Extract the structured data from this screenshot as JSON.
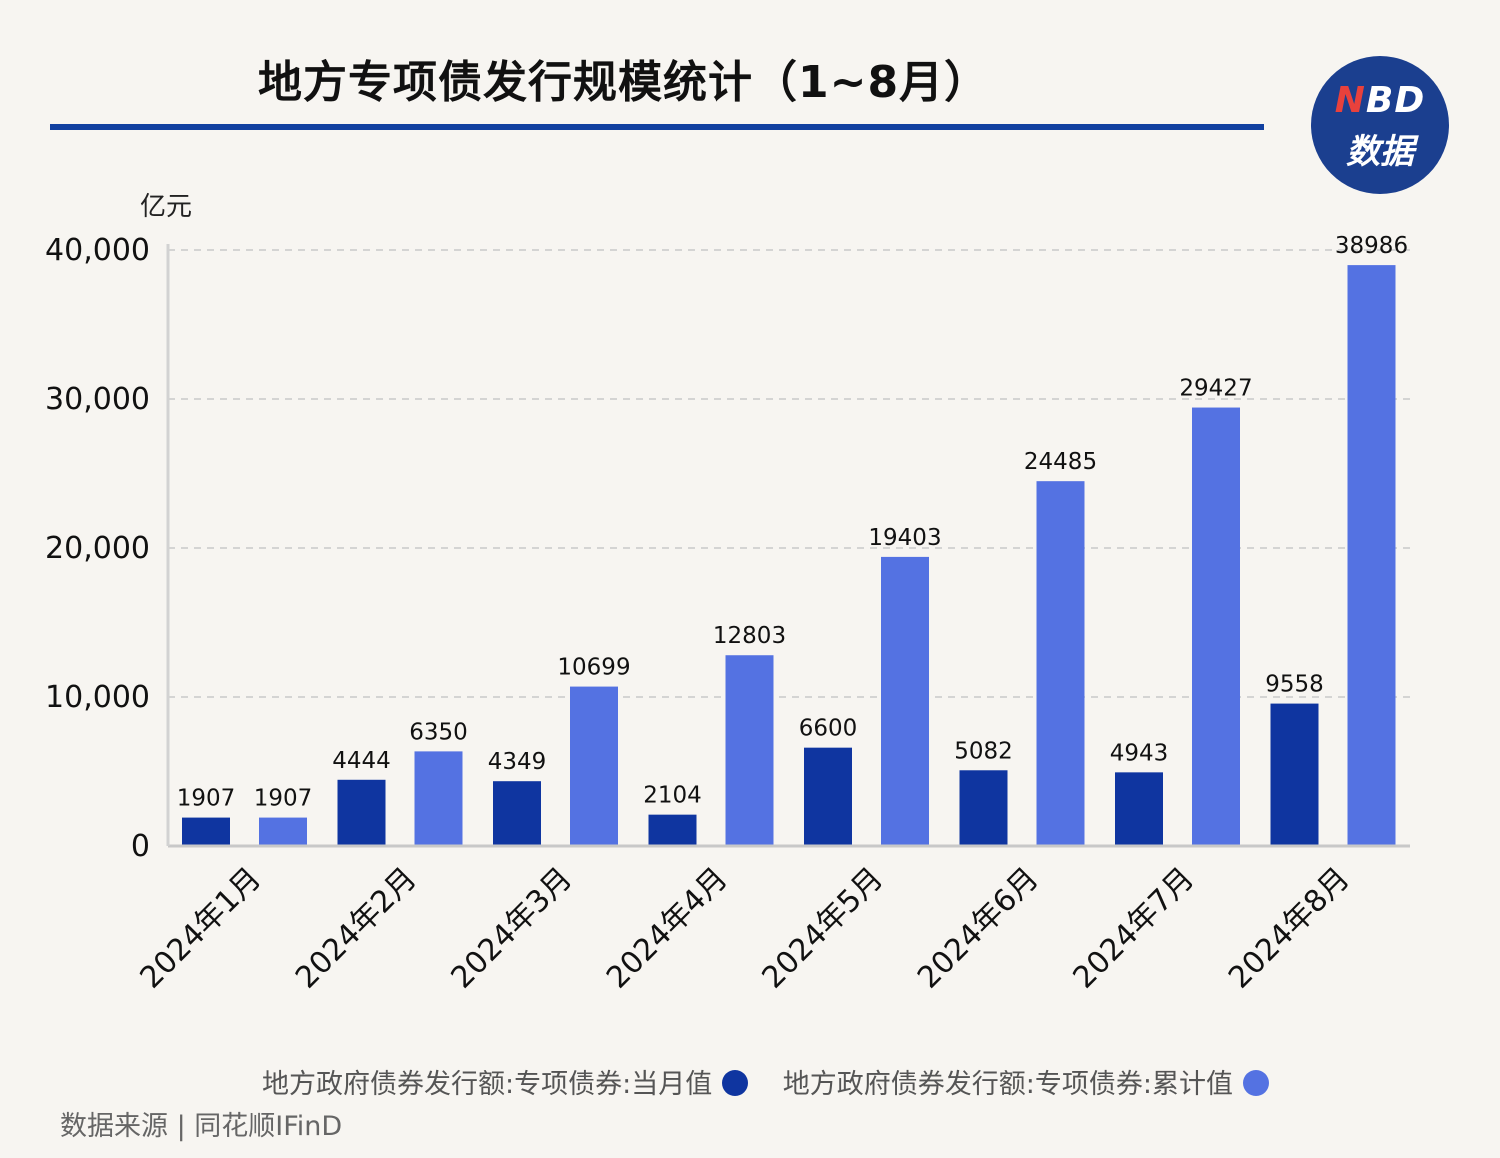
{
  "title": "地方专项债发行规模统计（1~8月）",
  "logo": {
    "line1_accent": "N",
    "line1_rest": "BD",
    "line2": "数据"
  },
  "source": "数据来源 | 同花顺IFinD",
  "colors": {
    "monthly": "#0f35a0",
    "cumulative": "#5472e2",
    "title_rule": "#1140a0",
    "logo_bg": "#1b3f8f"
  },
  "chart_data": {
    "type": "bar",
    "title": "地方专项债发行规模统计（1~8月）",
    "unit_label": "亿元",
    "categories": [
      "2024年1月",
      "2024年2月",
      "2024年3月",
      "2024年4月",
      "2024年5月",
      "2024年6月",
      "2024年7月",
      "2024年8月"
    ],
    "series": [
      {
        "name": "地方政府债券发行额:专项债券:当月值",
        "color": "#0f35a0",
        "values": [
          1907,
          4444,
          4349,
          2104,
          6600,
          5082,
          4943,
          9558
        ]
      },
      {
        "name": "地方政府债券发行额:专项债券:累计值",
        "color": "#5472e2",
        "values": [
          1907,
          6350,
          10699,
          12803,
          19403,
          24485,
          29427,
          38986
        ]
      }
    ],
    "ylim": [
      0,
      40000
    ],
    "yticks": [
      0,
      10000,
      20000,
      30000,
      40000
    ],
    "ytick_labels": [
      "0",
      "10,000",
      "20,000",
      "30,000",
      "40,000"
    ],
    "grid": true,
    "legend_position": "bottom"
  }
}
